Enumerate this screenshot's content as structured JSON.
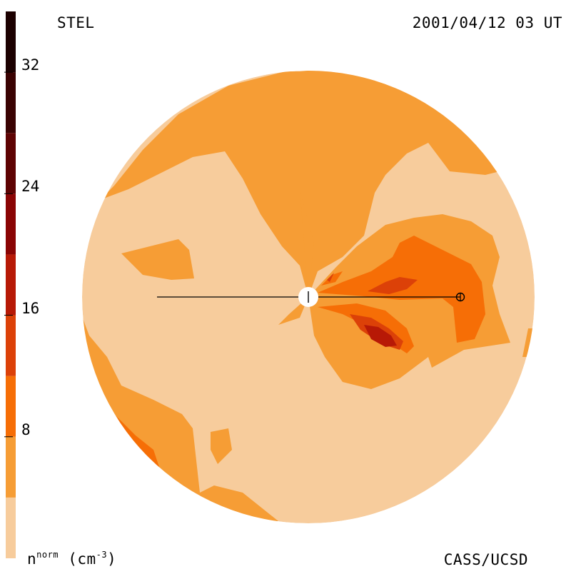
{
  "header": {
    "observatory": "STEL",
    "datetime": "2001/04/12 03 UT",
    "institution": "CASS/UCSD"
  },
  "colorbar": {
    "unit_base": "n",
    "unit_sup": "norm",
    "unit_tail": "(cm",
    "unit_exp": "-3",
    "unit_close": ")",
    "ticks": [
      {
        "label": "8",
        "value": 8
      },
      {
        "label": "16",
        "value": 16
      },
      {
        "label": "24",
        "value": 24
      },
      {
        "label": "32",
        "value": 32
      }
    ],
    "range": [
      0,
      36
    ],
    "levels": [
      {
        "from": 0,
        "to": 4,
        "color": "#f7cc9c"
      },
      {
        "from": 4,
        "to": 8,
        "color": "#f69d35"
      },
      {
        "from": 8,
        "to": 12,
        "color": "#f66e06"
      },
      {
        "from": 12,
        "to": 16,
        "color": "#dc4108"
      },
      {
        "from": 16,
        "to": 20,
        "color": "#b71906"
      },
      {
        "from": 20,
        "to": 24,
        "color": "#8a0404"
      },
      {
        "from": 24,
        "to": 28,
        "color": "#5e0303"
      },
      {
        "from": 28,
        "to": 32,
        "color": "#3a0202"
      },
      {
        "from": 32,
        "to": 36,
        "color": "#1c0101"
      }
    ]
  },
  "chart_data": {
    "type": "heatmap",
    "title": "",
    "xlabel": "",
    "ylabel": "",
    "colorscale_range": [
      0,
      36
    ],
    "colorbar_ticks": [
      8,
      16,
      24,
      32
    ],
    "grid": false,
    "legend": "colorbar-left"
  }
}
